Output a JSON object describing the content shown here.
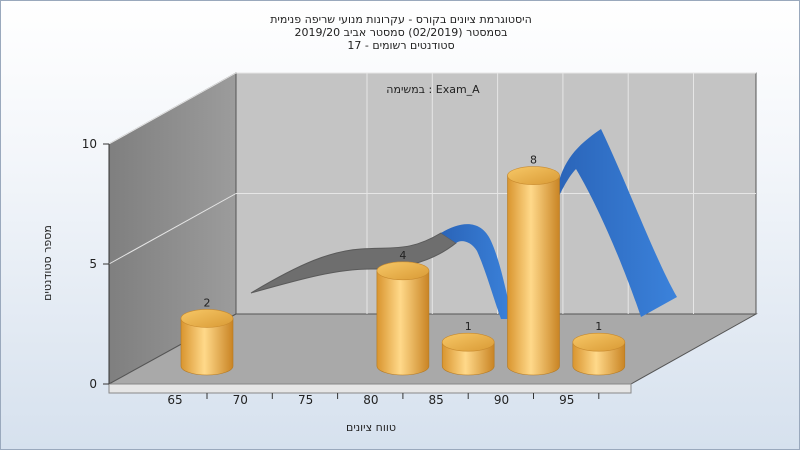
{
  "chart_data": {
    "type": "bar",
    "title_lines": [
      "היסטוגרמת ציונים בקורס - עקרונות מנועי שריפה פנימית",
      "בסמסטר  (02/2019)  סמסטר אביב 2019/20",
      "סטודנטים רשומים - 17"
    ],
    "annotation": "במשימה : Exam_A",
    "xlabel": "טווח ציונים",
    "ylabel": "מספר סטודנטים",
    "x_ticks": [
      "65",
      "70",
      "75",
      "80",
      "85",
      "90",
      "95"
    ],
    "y_ticks": [
      "0",
      "5",
      "10"
    ],
    "ylim": [
      0,
      10
    ],
    "grid": true,
    "bars": [
      {
        "x": 65,
        "value": 2,
        "label": "2"
      },
      {
        "x": 80,
        "value": 4,
        "label": "4"
      },
      {
        "x": 85,
        "value": 1,
        "label": "1"
      },
      {
        "x": 90,
        "value": 8,
        "label": "8"
      },
      {
        "x": 95,
        "value": 1,
        "label": "1"
      }
    ],
    "colors": {
      "bar": "#f0b858",
      "ribbon_blue": "#2f6fc9",
      "ribbon_gray": "#6b6b6b",
      "back_wall": "#c2c2c2",
      "side_wall": "#8c8c8c",
      "floor": "#a8a8a8"
    }
  }
}
